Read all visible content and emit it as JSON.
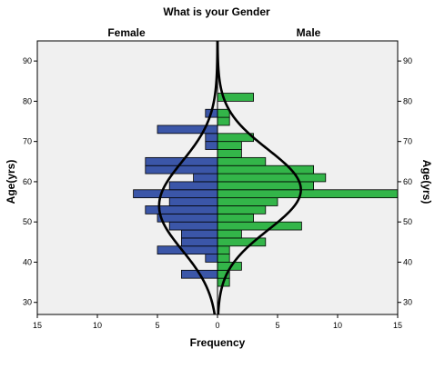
{
  "chart_data": {
    "type": "bar",
    "orientation": "horizontal-population-pyramid",
    "title": "What is your Gender",
    "panels": [
      "Female",
      "Male"
    ],
    "xlabel": "Frequency",
    "ylabel": "Age(yrs)",
    "x_ticks": [
      15,
      10,
      5,
      0,
      5,
      10,
      15
    ],
    "y_ticks": [
      30,
      40,
      50,
      60,
      70,
      80,
      90
    ],
    "xlim": [
      0,
      15
    ],
    "ylim": [
      27,
      95
    ],
    "bin_width": 2,
    "grid": false,
    "normal_curve": true,
    "series": [
      {
        "name": "Female",
        "bins": [
          {
            "age_from": 36,
            "age_to": 38,
            "value": 3
          },
          {
            "age_from": 40,
            "age_to": 42,
            "value": 1
          },
          {
            "age_from": 42,
            "age_to": 44,
            "value": 5
          },
          {
            "age_from": 44,
            "age_to": 46,
            "value": 3
          },
          {
            "age_from": 46,
            "age_to": 48,
            "value": 3
          },
          {
            "age_from": 48,
            "age_to": 50,
            "value": 4
          },
          {
            "age_from": 50,
            "age_to": 52,
            "value": 5
          },
          {
            "age_from": 52,
            "age_to": 54,
            "value": 6
          },
          {
            "age_from": 54,
            "age_to": 56,
            "value": 4
          },
          {
            "age_from": 56,
            "age_to": 58,
            "value": 7
          },
          {
            "age_from": 58,
            "age_to": 60,
            "value": 4
          },
          {
            "age_from": 60,
            "age_to": 62,
            "value": 2
          },
          {
            "age_from": 62,
            "age_to": 64,
            "value": 6
          },
          {
            "age_from": 64,
            "age_to": 66,
            "value": 6
          },
          {
            "age_from": 68,
            "age_to": 70,
            "value": 1
          },
          {
            "age_from": 70,
            "age_to": 72,
            "value": 1
          },
          {
            "age_from": 72,
            "age_to": 74,
            "value": 5
          },
          {
            "age_from": 76,
            "age_to": 78,
            "value": 1
          }
        ],
        "curve": {
          "mean": 54,
          "sd": 11
        }
      },
      {
        "name": "Male",
        "bins": [
          {
            "age_from": 34,
            "age_to": 36,
            "value": 1
          },
          {
            "age_from": 36,
            "age_to": 38,
            "value": 1
          },
          {
            "age_from": 38,
            "age_to": 40,
            "value": 2
          },
          {
            "age_from": 40,
            "age_to": 42,
            "value": 1
          },
          {
            "age_from": 42,
            "age_to": 44,
            "value": 1
          },
          {
            "age_from": 44,
            "age_to": 46,
            "value": 4
          },
          {
            "age_from": 46,
            "age_to": 48,
            "value": 2
          },
          {
            "age_from": 48,
            "age_to": 50,
            "value": 7
          },
          {
            "age_from": 50,
            "age_to": 52,
            "value": 3
          },
          {
            "age_from": 52,
            "age_to": 54,
            "value": 4
          },
          {
            "age_from": 54,
            "age_to": 56,
            "value": 5
          },
          {
            "age_from": 56,
            "age_to": 58,
            "value": 15
          },
          {
            "age_from": 58,
            "age_to": 60,
            "value": 8
          },
          {
            "age_from": 60,
            "age_to": 62,
            "value": 9
          },
          {
            "age_from": 62,
            "age_to": 64,
            "value": 8
          },
          {
            "age_from": 64,
            "age_to": 66,
            "value": 4
          },
          {
            "age_from": 66,
            "age_to": 68,
            "value": 2
          },
          {
            "age_from": 68,
            "age_to": 70,
            "value": 2
          },
          {
            "age_from": 70,
            "age_to": 72,
            "value": 3
          },
          {
            "age_from": 74,
            "age_to": 76,
            "value": 1
          },
          {
            "age_from": 76,
            "age_to": 78,
            "value": 1
          },
          {
            "age_from": 80,
            "age_to": 82,
            "value": 3
          }
        ],
        "curve": {
          "mean": 58,
          "sd": 10
        }
      }
    ],
    "colors": {
      "Female": "#3b56a8",
      "Male": "#33b549",
      "plot_background": "#f0f0f0",
      "frame": "#000000",
      "curve": "#000000"
    }
  }
}
